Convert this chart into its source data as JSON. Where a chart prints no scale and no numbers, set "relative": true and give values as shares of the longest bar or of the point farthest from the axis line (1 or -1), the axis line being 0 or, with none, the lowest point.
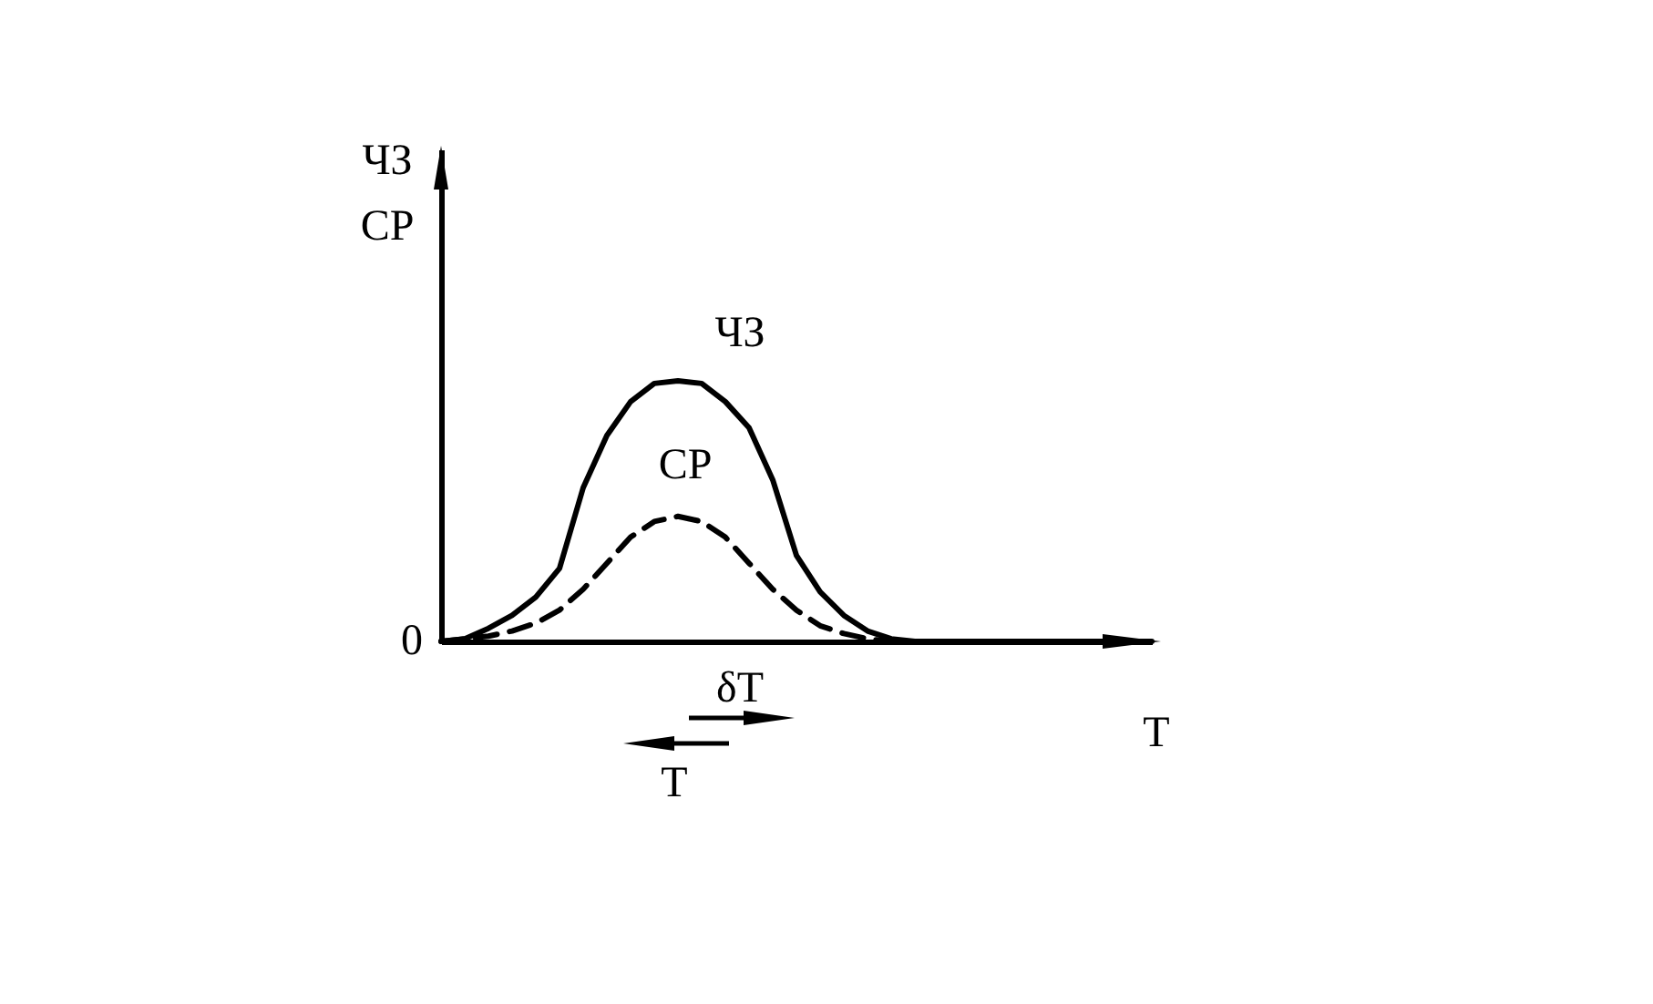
{
  "chart_data": {
    "type": "line",
    "relative": true,
    "xlabel": "T",
    "ylabel": "ЧЗ\nСР",
    "categories": [
      null,
      null,
      null,
      null,
      null,
      null,
      null,
      null,
      null,
      null,
      null,
      null,
      null,
      null,
      null,
      null,
      null,
      null,
      null,
      null,
      null,
      null,
      null,
      null,
      null,
      null,
      null,
      null,
      null,
      null,
      null
    ],
    "series": [
      {
        "name": "ЧЗ",
        "color": "#000000",
        "line_style": "solid",
        "values": [
          0,
          0.01,
          0.05,
          0.1,
          0.17,
          0.28,
          0.59,
          0.79,
          0.92,
          0.99,
          1,
          0.99,
          0.92,
          0.82,
          0.62,
          0.33,
          0.19,
          0.1,
          0.04,
          0.01,
          0,
          0,
          0,
          0,
          0,
          0,
          0,
          0,
          0,
          0,
          0
        ]
      },
      {
        "name": "СР",
        "color": "#000000",
        "line_style": "dashed",
        "values": [
          0,
          0.01,
          0.02,
          0.04,
          0.07,
          0.12,
          0.2,
          0.3,
          0.4,
          0.46,
          0.48,
          0.46,
          0.4,
          0.3,
          0.2,
          0.12,
          0.06,
          0.03,
          0.01,
          0,
          0,
          0,
          0,
          0,
          0,
          0,
          0,
          0,
          0,
          0,
          0
        ]
      }
    ],
    "annotations": [
      "0",
      "δT",
      "T"
    ]
  }
}
